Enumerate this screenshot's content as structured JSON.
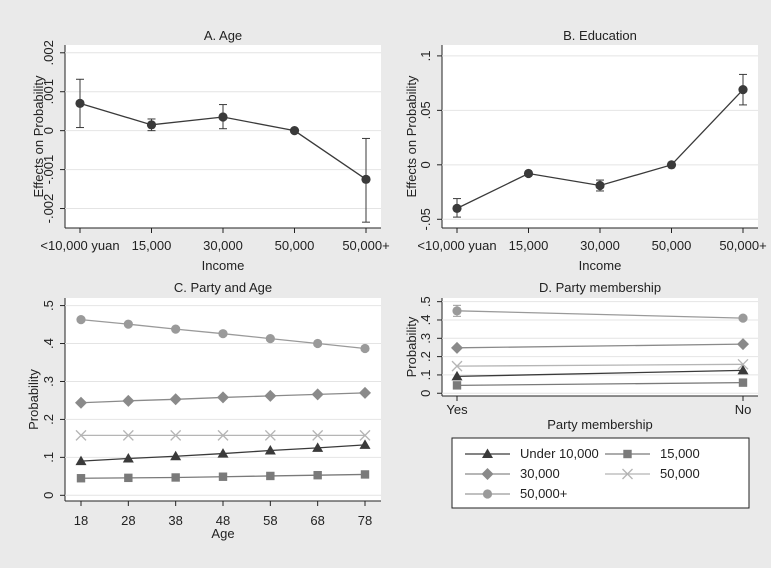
{
  "colors": {
    "background": "#eaeaea",
    "plot_bg": "#ffffff",
    "grid": "#e4e4e4",
    "axis": "#222222",
    "income_lines": [
      "#3a3a3a",
      "#7a7a7a",
      "#8a8a8a",
      "#b5b5b5",
      "#9a9a9a"
    ]
  },
  "chart_data": [
    {
      "id": "A",
      "type": "line",
      "title": "A. Age",
      "xlabel": "Income",
      "ylabel": "Effects on Probability",
      "categories": [
        "<10,000 yuan",
        "15,000",
        "30,000",
        "50,000",
        "50,000+"
      ],
      "yticks": [
        -0.002,
        -0.001,
        0,
        0.001,
        0.002
      ],
      "ytick_labels": [
        "-.002",
        "-.001",
        "0",
        ".001",
        ".002"
      ],
      "ylim": [
        -0.0025,
        0.0022
      ],
      "series": [
        {
          "values": [
            0.0007,
            0.00015,
            0.00035,
            0.0,
            -0.00125
          ],
          "ci_low": [
            8e-05,
            0.0,
            5e-05,
            0.0,
            -0.00235
          ],
          "ci_high": [
            0.00132,
            0.0003,
            0.00067,
            0.0,
            -0.0002
          ],
          "marker": "circle"
        }
      ],
      "grid": true
    },
    {
      "id": "B",
      "type": "line",
      "title": "B. Education",
      "xlabel": "Income",
      "ylabel": "Effects on Probability",
      "categories": [
        "<10,000 yuan",
        "15,000",
        "30,000",
        "50,000",
        "50,000+"
      ],
      "yticks": [
        -0.05,
        0,
        0.05,
        0.1
      ],
      "ytick_labels": [
        "-.05",
        "0",
        ".05",
        ".1"
      ],
      "ylim": [
        -0.058,
        0.11
      ],
      "series": [
        {
          "values": [
            -0.04,
            -0.008,
            -0.019,
            0.0,
            0.069
          ],
          "ci_low": [
            -0.048,
            -0.009,
            -0.024,
            0.0,
            0.055
          ],
          "ci_high": [
            -0.031,
            -0.007,
            -0.014,
            0.0,
            0.083
          ],
          "marker": "circle"
        }
      ],
      "grid": true
    },
    {
      "id": "C",
      "type": "line",
      "title": "C. Party and Age",
      "xlabel": "Age",
      "ylabel": "Probability",
      "x": [
        18,
        28,
        38,
        48,
        58,
        68,
        78
      ],
      "yticks": [
        0,
        0.1,
        0.2,
        0.3,
        0.4,
        0.5
      ],
      "ytick_labels": [
        "0",
        ".1",
        ".2",
        ".3",
        ".4",
        ".5"
      ],
      "ylim": [
        -0.015,
        0.52
      ],
      "series": [
        {
          "name": "Under 10,000",
          "marker": "triangle",
          "values": [
            0.09,
            0.097,
            0.103,
            0.11,
            0.118,
            0.125,
            0.133
          ]
        },
        {
          "name": "15,000",
          "marker": "square",
          "values": [
            0.045,
            0.046,
            0.047,
            0.049,
            0.051,
            0.053,
            0.055
          ]
        },
        {
          "name": "30,000",
          "marker": "diamond",
          "values": [
            0.244,
            0.249,
            0.253,
            0.258,
            0.262,
            0.266,
            0.27
          ]
        },
        {
          "name": "50,000",
          "marker": "x",
          "values": [
            0.158,
            0.158,
            0.158,
            0.158,
            0.158,
            0.158,
            0.158
          ]
        },
        {
          "name": "50,000+",
          "marker": "circle",
          "values": [
            0.463,
            0.451,
            0.438,
            0.426,
            0.413,
            0.4,
            0.387
          ]
        }
      ],
      "grid": true
    },
    {
      "id": "D",
      "type": "line",
      "title": "D. Party membership",
      "xlabel": "Party membership",
      "ylabel": "Probability",
      "categories": [
        "Yes",
        "No"
      ],
      "yticks": [
        0,
        0.1,
        0.2,
        0.3,
        0.4,
        0.5
      ],
      "ytick_labels": [
        "0",
        ".1",
        ".2",
        ".3",
        ".4",
        ".5"
      ],
      "ylim": [
        -0.015,
        0.52
      ],
      "series": [
        {
          "name": "Under 10,000",
          "marker": "triangle",
          "values": [
            0.092,
            0.125
          ]
        },
        {
          "name": "15,000",
          "marker": "square",
          "values": [
            0.043,
            0.058
          ]
        },
        {
          "name": "30,000",
          "marker": "diamond",
          "values": [
            0.248,
            0.268
          ]
        },
        {
          "name": "50,000",
          "marker": "x",
          "values": [
            0.148,
            0.158
          ]
        },
        {
          "name": "50,000+",
          "marker": "circle",
          "values": [
            0.45,
            0.41
          ],
          "ci_low": [
            0.42,
            0.41
          ],
          "ci_high": [
            0.48,
            0.41
          ]
        }
      ],
      "grid": true
    }
  ],
  "legend": {
    "placement": "bottom-right",
    "items": [
      {
        "label": "Under 10,000",
        "marker": "triangle"
      },
      {
        "label": "15,000",
        "marker": "square"
      },
      {
        "label": "30,000",
        "marker": "diamond"
      },
      {
        "label": "50,000",
        "marker": "x"
      },
      {
        "label": "50,000+",
        "marker": "circle"
      }
    ]
  }
}
